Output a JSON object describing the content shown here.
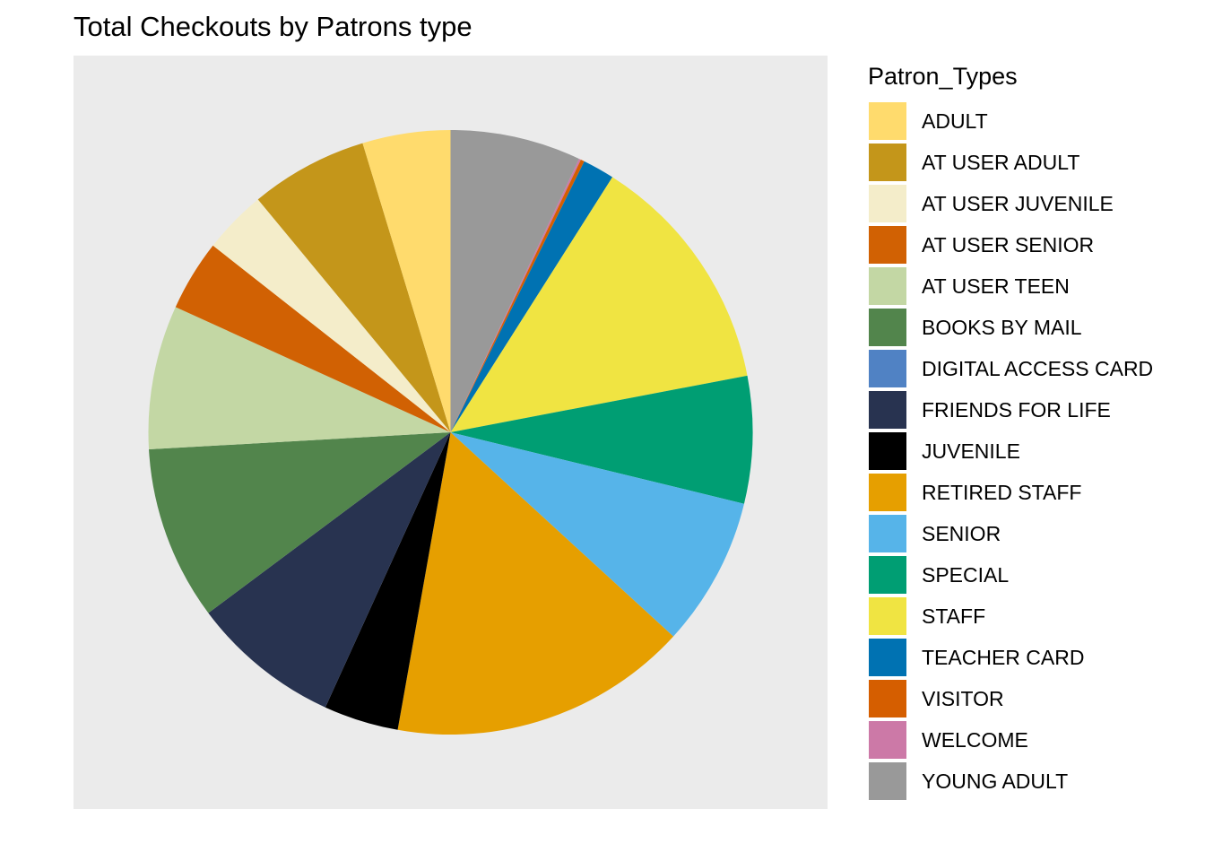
{
  "chart_data": {
    "type": "pie",
    "title": "Total Checkouts by Patrons type",
    "legend_title": "Patron_Types",
    "legend_position": "right",
    "start_angle_deg": 0,
    "direction": "clockwise",
    "background": "#ebebeb",
    "slices": [
      {
        "label": "YOUNG ADULT",
        "value": 7.0,
        "color": "#999999"
      },
      {
        "label": "WELCOME",
        "value": 0.1,
        "color": "#cc79a7"
      },
      {
        "label": "VISITOR",
        "value": 0.2,
        "color": "#d55e00"
      },
      {
        "label": "TEACHER CARD",
        "value": 1.7,
        "color": "#0072b2"
      },
      {
        "label": "STAFF",
        "value": 13.0,
        "color": "#f0e442"
      },
      {
        "label": "SPECIAL",
        "value": 6.8,
        "color": "#009e73"
      },
      {
        "label": "SENIOR",
        "value": 8.0,
        "color": "#56b4e9"
      },
      {
        "label": "RETIRED STAFF",
        "value": 16.0,
        "color": "#e69f00"
      },
      {
        "label": "JUVENILE",
        "value": 4.0,
        "color": "#000000"
      },
      {
        "label": "FRIENDS FOR LIFE",
        "value": 8.0,
        "color": "#283350"
      },
      {
        "label": "DIGITAL ACCESS CARD",
        "value": 0.0,
        "color": "#5082c4"
      },
      {
        "label": "BOOKS BY MAIL",
        "value": 9.3,
        "color": "#52854c"
      },
      {
        "label": "AT USER TEEN",
        "value": 7.7,
        "color": "#c3d7a4"
      },
      {
        "label": "AT USER SENIOR",
        "value": 3.8,
        "color": "#d16103"
      },
      {
        "label": "AT USER JUVENILE",
        "value": 3.4,
        "color": "#f4edca"
      },
      {
        "label": "AT USER ADULT",
        "value": 6.3,
        "color": "#c4961a"
      },
      {
        "label": "ADULT",
        "value": 4.7,
        "color": "#ffdb6d"
      }
    ],
    "legend_order": [
      "ADULT",
      "AT USER ADULT",
      "AT USER JUVENILE",
      "AT USER SENIOR",
      "AT USER TEEN",
      "BOOKS BY MAIL",
      "DIGITAL ACCESS CARD",
      "FRIENDS FOR LIFE",
      "JUVENILE",
      "RETIRED STAFF",
      "SENIOR",
      "SPECIAL",
      "STAFF",
      "TEACHER CARD",
      "VISITOR",
      "WELCOME",
      "YOUNG ADULT"
    ]
  }
}
